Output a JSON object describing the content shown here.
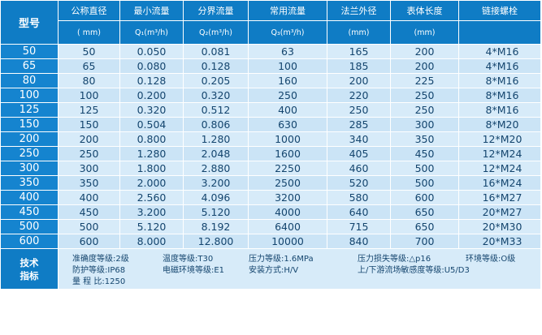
{
  "headers": {
    "model": "型号",
    "dn": "公称直径",
    "qmin": "最小流量",
    "qt": "分界流量",
    "qn": "常用流量",
    "flange": "法兰外径",
    "length": "表体长度",
    "bolt": "链接螺栓"
  },
  "units": {
    "dn": "( mm)",
    "qmin": "Q₁(m³/h)",
    "qt": "Q₂(m³/h)",
    "qn": "Q₃(m³/h)",
    "flange": "(mm)",
    "length": "(mm)"
  },
  "rows": [
    {
      "model": "50",
      "dn": "50",
      "qmin": "0.050",
      "qt": "0.081",
      "qn": "63",
      "flange": "165",
      "length": "200",
      "bolt": "4*M16"
    },
    {
      "model": "65",
      "dn": "65",
      "qmin": "0.080",
      "qt": "0.128",
      "qn": "100",
      "flange": "185",
      "length": "200",
      "bolt": "4*M16"
    },
    {
      "model": "80",
      "dn": "80",
      "qmin": "0.128",
      "qt": "0.205",
      "qn": "160",
      "flange": "200",
      "length": "225",
      "bolt": "8*M16"
    },
    {
      "model": "100",
      "dn": "100",
      "qmin": "0.200",
      "qt": "0.320",
      "qn": "250",
      "flange": "220",
      "length": "250",
      "bolt": "8*M16"
    },
    {
      "model": "125",
      "dn": "125",
      "qmin": "0.320",
      "qt": "0.512",
      "qn": "400",
      "flange": "250",
      "length": "250",
      "bolt": "8*M16"
    },
    {
      "model": "150",
      "dn": "150",
      "qmin": "0.504",
      "qt": "0.806",
      "qn": "630",
      "flange": "285",
      "length": "300",
      "bolt": "8*M20"
    },
    {
      "model": "200",
      "dn": "200",
      "qmin": "0.800",
      "qt": "1.280",
      "qn": "1000",
      "flange": "340",
      "length": "350",
      "bolt": "12*M20"
    },
    {
      "model": "250",
      "dn": "250",
      "qmin": "1.280",
      "qt": "2.048",
      "qn": "1600",
      "flange": "405",
      "length": "450",
      "bolt": "12*M24"
    },
    {
      "model": "300",
      "dn": "300",
      "qmin": "1.800",
      "qt": "2.880",
      "qn": "2250",
      "flange": "460",
      "length": "500",
      "bolt": "12*M24"
    },
    {
      "model": "350",
      "dn": "350",
      "qmin": "2.000",
      "qt": "3.200",
      "qn": "2500",
      "flange": "520",
      "length": "500",
      "bolt": "16*M24"
    },
    {
      "model": "400",
      "dn": "400",
      "qmin": "2.560",
      "qt": "4.096",
      "qn": "3200",
      "flange": "580",
      "length": "600",
      "bolt": "16*M27"
    },
    {
      "model": "450",
      "dn": "450",
      "qmin": "3.200",
      "qt": "5.120",
      "qn": "4000",
      "flange": "640",
      "length": "650",
      "bolt": "20*M27"
    },
    {
      "model": "500",
      "dn": "500",
      "qmin": "5.120",
      "qt": "8.192",
      "qn": "6400",
      "flange": "715",
      "length": "650",
      "bolt": "20*M30"
    },
    {
      "model": "600",
      "dn": "600",
      "qmin": "8.000",
      "qt": "12.800",
      "qn": "10000",
      "flange": "840",
      "length": "700",
      "bolt": "20*M33"
    }
  ],
  "tech": {
    "label_line1": "技术",
    "label_line2": "指标",
    "accuracy": "准确度等级:2级",
    "temperature": "温度等级:T30",
    "pressure": "压力等级:1.6MPa",
    "pressure_loss": "压力损失等级:△p16",
    "environment": "环境等级:O级",
    "protection": "防护等级:IP68",
    "emc": "电磁环境等级:E1",
    "install": "安装方式:H/V",
    "flow_sensitivity": "上/下游流场敏感度等级:U5/D3",
    "range_ratio": "量  程  比:1250"
  }
}
